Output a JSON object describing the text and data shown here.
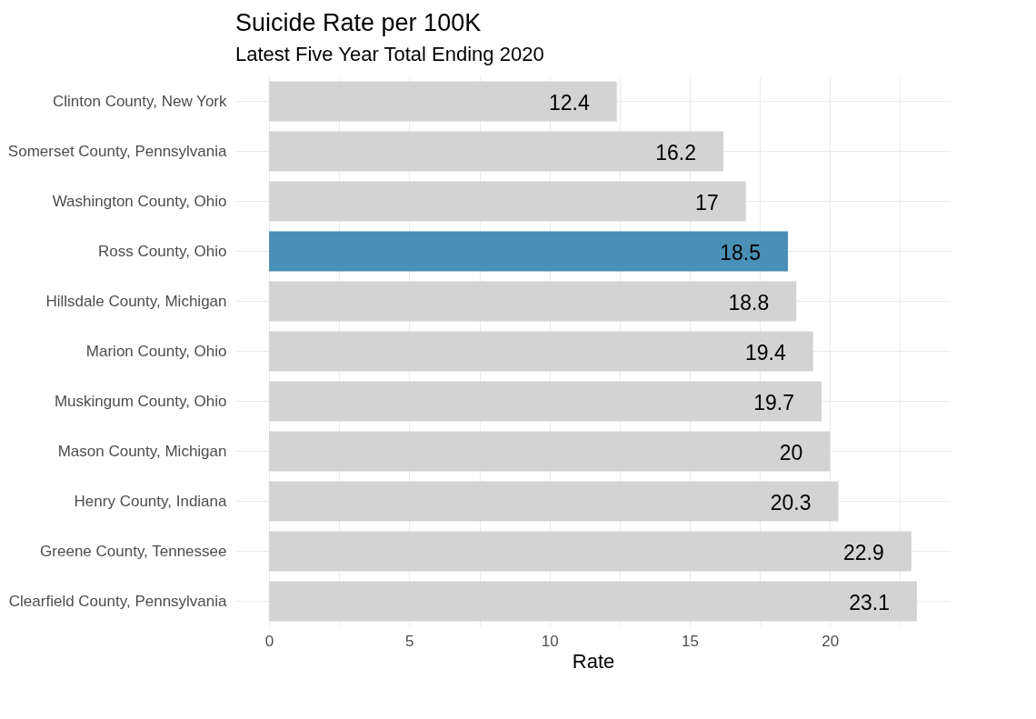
{
  "chart_data": {
    "type": "bar",
    "orientation": "horizontal",
    "title": "Suicide Rate per 100K",
    "subtitle": "Latest Five Year Total Ending 2020",
    "xlabel": "Rate",
    "categories": [
      "Clinton County, New York",
      "Somerset County, Pennsylvania",
      "Washington County, Ohio",
      "Ross County, Ohio",
      "Hillsdale County, Michigan",
      "Marion County, Ohio",
      "Muskingum County, Ohio",
      "Mason County, Michigan",
      "Henry County, Indiana",
      "Greene County, Tennessee",
      "Clearfield County, Pennsylvania"
    ],
    "values": [
      12.4,
      16.2,
      17,
      18.5,
      18.8,
      19.4,
      19.7,
      20,
      20.3,
      22.9,
      23.1
    ],
    "colors": [
      "#d3d3d3",
      "#d3d3d3",
      "#d3d3d3",
      "#4a8fb5",
      "#d3d3d3",
      "#d3d3d3",
      "#d3d3d3",
      "#d3d3d3",
      "#d3d3d3",
      "#d3d3d3",
      "#d3d3d3"
    ],
    "xlim": [
      -1.2,
      24.3
    ],
    "xticks": [
      0,
      {
        "value": 2.5,
        "label": null
      },
      5,
      {
        "value": 7.5,
        "label": null
      },
      10,
      {
        "value": 12.5,
        "label": null
      },
      15,
      {
        "value": 17.5,
        "label": null
      },
      20,
      {
        "value": 22.5,
        "label": null
      }
    ],
    "data_labels": true,
    "grid": true,
    "legend": false
  }
}
